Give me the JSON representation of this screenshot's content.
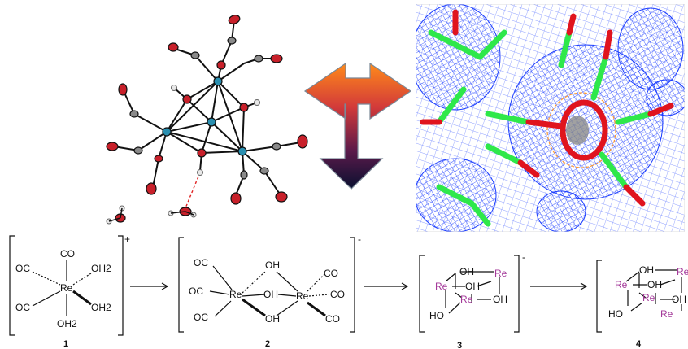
{
  "colors": {
    "rhenium_label": "#a43a9a",
    "oxygen_atom": "#c8202a",
    "carbon_atom": "#8a8a8a",
    "rhenium_atom": "#2a8fb0",
    "density_mesh": "#1a3cff",
    "stick_carbon": "#2ee84a",
    "stick_oxygen": "#e0141e",
    "arrow_top": "#ff8a1a",
    "arrow_bottom": "#0a1030"
  },
  "panels": {
    "ortep_structure": "ortep-thermal-ellipsoid-plot",
    "density_map": "electron-density-mesh",
    "central_arrow": "double-headed-T-arrow"
  },
  "compounds": [
    {
      "number": "1",
      "charge": "+",
      "metal": "Re",
      "ligands": [
        "CO",
        "OC",
        "OH2",
        "OC",
        "OH2",
        "OH2"
      ]
    },
    {
      "number": "2",
      "charge": "-",
      "metals": [
        "Re",
        "Re"
      ],
      "ligands": [
        "OC",
        "OH",
        "CO",
        "OC",
        "OH",
        "CO",
        "OC",
        "OH",
        "CO"
      ]
    },
    {
      "number": "3",
      "charge": "-",
      "metals": [
        "Re",
        "Re",
        "Re"
      ],
      "ligands": [
        "OH",
        "OH",
        "OH",
        "HO"
      ]
    },
    {
      "number": "4",
      "charge": "",
      "metals": [
        "Re",
        "Re",
        "Re",
        "Re"
      ],
      "ligands": [
        "OH",
        "OH",
        "OH",
        "HO"
      ]
    }
  ]
}
